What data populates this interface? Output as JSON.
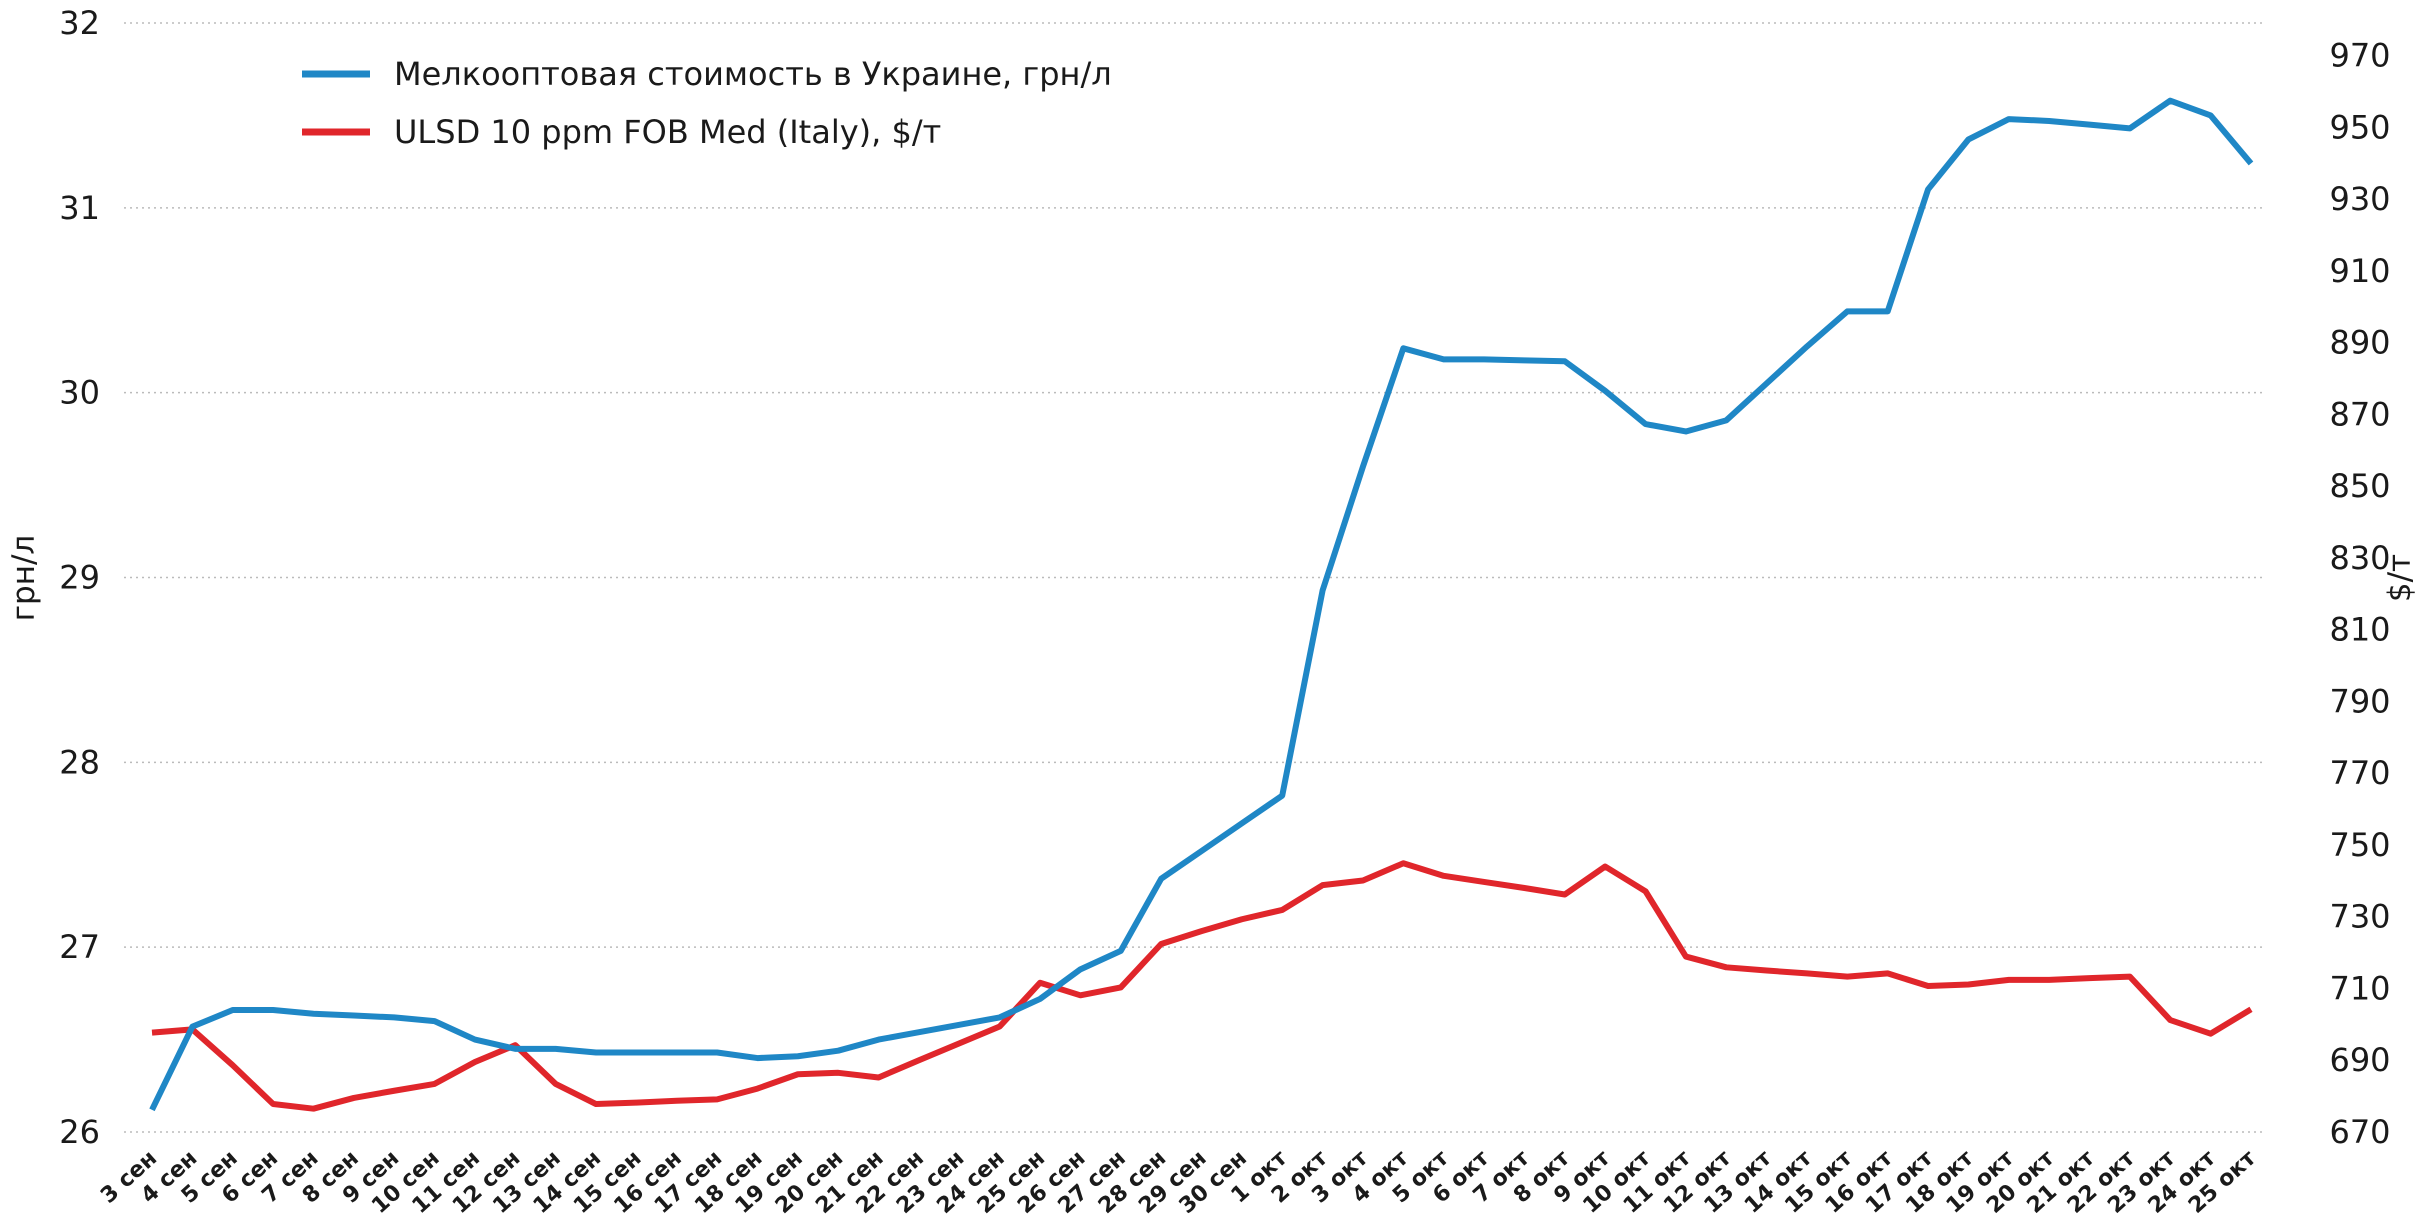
{
  "chart_data": {
    "type": "line",
    "y_label": "грн/л",
    "y2_label": "$/т",
    "categories": [
      "3 сен",
      "4 сен",
      "5 сен",
      "6 сен",
      "7 сен",
      "8 сен",
      "9 сен",
      "10 сен",
      "11 сен",
      "12 сен",
      "13 сен",
      "14 сен",
      "15 сен",
      "16 сен",
      "17 сен",
      "18 сен",
      "19 сен",
      "20 сен",
      "21 сен",
      "22 сен",
      "23 сен",
      "24 сен",
      "25 сен",
      "26 сен",
      "27 сен",
      "28 сен",
      "29 сен",
      "30 сен",
      "1 окт",
      "2 окт",
      "3 окт",
      "4 окт",
      "5 окт",
      "6 окт",
      "7 окт",
      "8 окт",
      "9 окт",
      "10 окт",
      "11 окт",
      "12 окт",
      "13 окт",
      "14 окт",
      "15 окт",
      "16 окт",
      "17 окт",
      "18 окт",
      "19 окт",
      "20 окт",
      "21 окт",
      "22 окт",
      "23 окт",
      "24 окт",
      "25 окт"
    ],
    "series": [
      {
        "name": "Мелкооптовая стоимость в Украине, грн/л",
        "color": "#1f87c6",
        "values": [
          26.12,
          26.57,
          26.66,
          26.66,
          26.64,
          26.63,
          26.62,
          26.6,
          26.5,
          26.45,
          26.45,
          26.43,
          26.43,
          26.43,
          26.43,
          26.4,
          26.41,
          26.44,
          26.5,
          26.54,
          26.58,
          26.62,
          26.72,
          26.88,
          26.98,
          27.37,
          27.52,
          27.67,
          27.82,
          28.93,
          29.6,
          30.24,
          30.18,
          30.18,
          30.175,
          30.17,
          30.01,
          29.83,
          29.79,
          29.85,
          30.05,
          30.25,
          30.44,
          30.44,
          31.1,
          31.37,
          31.48,
          31.47,
          31.45,
          31.43,
          31.58,
          31.5,
          31.24
        ]
      },
      {
        "name": "ULSD 10 ppm FOB Med (Italy), $/т",
        "color": "#e0262b",
        "axis": "y2",
        "values": [
          697.7,
          698.6,
          688.6,
          677.8,
          676.5,
          679.5,
          681.5,
          683.4,
          689.5,
          694.2,
          683.4,
          677.8,
          678.2,
          678.7,
          679.1,
          682.1,
          686.1,
          686.5,
          685.2,
          690,
          694.7,
          699.4,
          711.6,
          708.1,
          710.3,
          722.4,
          726,
          729.3,
          731.9,
          738.8,
          740.1,
          744.9,
          741.4,
          739.7,
          738,
          736.2,
          744,
          737.1,
          718.9,
          715.9,
          715,
          714.2,
          713.3,
          714.2,
          710.7,
          711.1,
          712.4,
          712.4,
          712.9,
          713.3,
          701.2,
          697.4,
          704.2
        ]
      }
    ],
    "ylim": [
      26,
      32
    ],
    "yticks": [
      26,
      27,
      28,
      29,
      30,
      31,
      32
    ],
    "y2lim": [
      670,
      979.1
    ],
    "y2ticks": [
      670,
      690,
      710,
      730,
      750,
      770,
      790,
      810,
      830,
      850,
      870,
      890,
      910,
      930,
      950,
      970
    ],
    "grid": true,
    "legend": "top-left"
  }
}
